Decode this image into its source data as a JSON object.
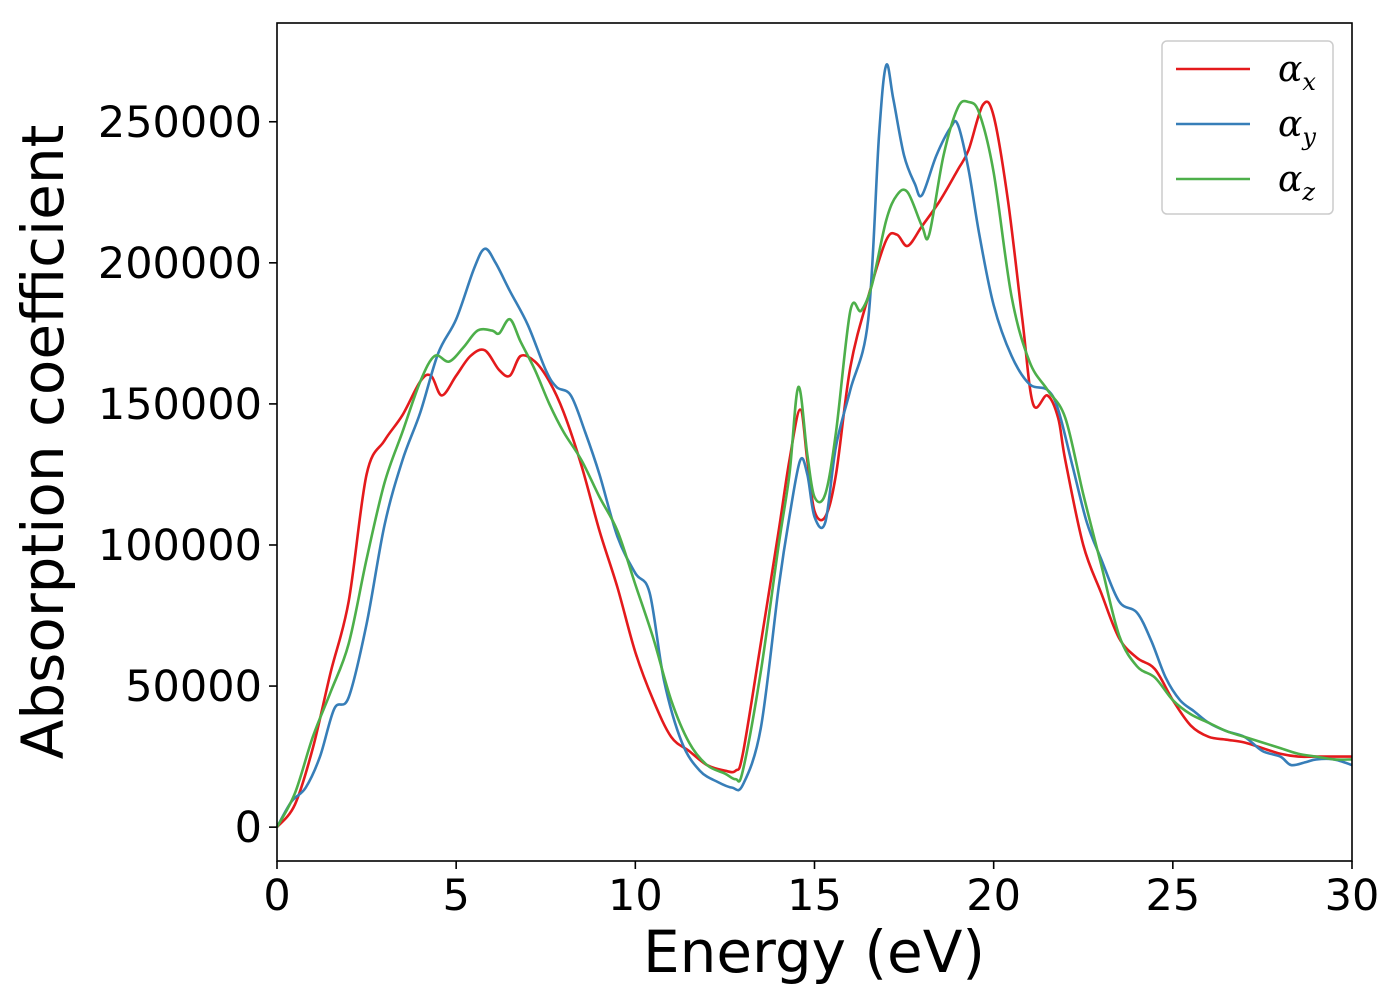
{
  "chart_data": {
    "type": "line",
    "title": "",
    "xlabel": "Energy (eV)",
    "ylabel": "Absorption coefficient",
    "xlim": [
      0,
      30
    ],
    "ylim": [
      -12000,
      285000
    ],
    "xticks": [
      0,
      5,
      10,
      15,
      20,
      25,
      30
    ],
    "yticks": [
      0,
      50000,
      100000,
      150000,
      200000,
      250000
    ],
    "xtick_labels": [
      "0",
      "5",
      "10",
      "15",
      "20",
      "25",
      "30"
    ],
    "ytick_labels": [
      "0",
      "50000",
      "100000",
      "150000",
      "200000",
      "250000"
    ],
    "grid": false,
    "legend_position": "top-right",
    "series": [
      {
        "name": "αx",
        "symbol": "α",
        "subscript": "x",
        "color": "#e41a1c",
        "x": [
          0,
          0.5,
          1,
          1.5,
          2,
          2.5,
          3,
          3.5,
          4,
          4.3,
          4.6,
          5,
          5.4,
          5.8,
          6.2,
          6.5,
          6.8,
          7.2,
          7.6,
          8,
          8.5,
          9,
          9.5,
          10,
          10.5,
          11,
          11.5,
          12,
          12.5,
          12.8,
          13,
          13.5,
          14,
          14.3,
          14.6,
          14.8,
          15,
          15.3,
          15.6,
          16,
          16.5,
          17,
          17.3,
          17.6,
          18,
          18.5,
          19,
          19.3,
          19.7,
          20,
          20.4,
          20.8,
          21.1,
          21.5,
          21.8,
          22,
          22.5,
          23,
          23.5,
          24,
          24.5,
          25,
          25.5,
          26,
          26.5,
          27,
          27.5,
          28,
          28.5,
          29,
          29.5,
          30
        ],
        "y": [
          0,
          8000,
          28000,
          55000,
          80000,
          125000,
          137000,
          146000,
          158000,
          160000,
          153000,
          160000,
          167000,
          169000,
          162000,
          160000,
          167000,
          165000,
          158000,
          147000,
          128000,
          105000,
          85000,
          62000,
          45000,
          32000,
          27000,
          22000,
          20000,
          20000,
          26000,
          65000,
          105000,
          130000,
          148000,
          130000,
          112000,
          110000,
          125000,
          163000,
          188000,
          208000,
          210000,
          206000,
          213000,
          222000,
          233000,
          240000,
          256000,
          252000,
          222000,
          180000,
          150000,
          153000,
          145000,
          130000,
          100000,
          83000,
          67000,
          60000,
          56000,
          45000,
          36000,
          32000,
          31000,
          30000,
          28000,
          26000,
          25000,
          25000,
          25000,
          25000
        ]
      },
      {
        "name": "αy",
        "symbol": "α",
        "subscript": "y",
        "color": "#377eb8",
        "x": [
          0,
          0.4,
          0.8,
          1.2,
          1.6,
          2,
          2.5,
          3,
          3.5,
          4,
          4.5,
          5,
          5.5,
          5.8,
          6.1,
          6.5,
          7,
          7.5,
          7.8,
          8.2,
          8.6,
          9,
          9.5,
          10,
          10.4,
          10.8,
          11.3,
          11.8,
          12.3,
          12.7,
          13,
          13.5,
          14,
          14.3,
          14.6,
          14.8,
          15,
          15.3,
          15.6,
          16,
          16.5,
          16.8,
          17,
          17.2,
          17.5,
          17.8,
          18,
          18.4,
          18.8,
          19,
          19.3,
          19.6,
          20,
          20.5,
          21,
          21.5,
          21.8,
          22.2,
          22.6,
          23,
          23.5,
          24,
          24.4,
          24.8,
          25.2,
          25.6,
          26,
          26.5,
          27,
          27.5,
          28,
          28.3,
          28.7,
          29,
          29.5,
          30
        ],
        "y": [
          0,
          9000,
          14000,
          25000,
          42000,
          46000,
          72000,
          107000,
          130000,
          147000,
          168000,
          180000,
          198000,
          205000,
          200000,
          190000,
          178000,
          162000,
          156000,
          153000,
          140000,
          125000,
          103000,
          90000,
          83000,
          52000,
          30000,
          20000,
          16000,
          14000,
          15000,
          35000,
          85000,
          110000,
          130000,
          125000,
          110000,
          108000,
          135000,
          155000,
          180000,
          245000,
          270000,
          258000,
          238000,
          228000,
          224000,
          238000,
          248000,
          249000,
          233000,
          210000,
          185000,
          167000,
          157000,
          155000,
          148000,
          128000,
          108000,
          95000,
          80000,
          76000,
          66000,
          53000,
          45000,
          41000,
          37000,
          34000,
          32000,
          27000,
          25000,
          22000,
          23000,
          24000,
          24000,
          22000
        ]
      },
      {
        "name": "αz",
        "symbol": "α",
        "subscript": "z",
        "color": "#4daf4a",
        "x": [
          0,
          0.5,
          1,
          1.5,
          2,
          2.5,
          3,
          3.5,
          4,
          4.4,
          4.8,
          5.2,
          5.6,
          6,
          6.2,
          6.5,
          6.8,
          7.2,
          7.6,
          8,
          8.5,
          9,
          9.5,
          10,
          10.5,
          11,
          11.5,
          12,
          12.5,
          12.8,
          13,
          13.5,
          14,
          14.3,
          14.55,
          14.8,
          15,
          15.3,
          15.6,
          16,
          16.3,
          16.6,
          17,
          17.3,
          17.6,
          18,
          18.2,
          18.6,
          19,
          19.3,
          19.6,
          20,
          20.5,
          21,
          21.5,
          22,
          22.5,
          23,
          23.5,
          24,
          24.5,
          25,
          25.5,
          26,
          26.5,
          27,
          27.5,
          28,
          28.5,
          29,
          29.5,
          30
        ],
        "y": [
          0,
          12000,
          32000,
          48000,
          65000,
          95000,
          122000,
          140000,
          158000,
          167000,
          165000,
          170000,
          176000,
          176000,
          175000,
          180000,
          172000,
          162000,
          150000,
          140000,
          130000,
          117000,
          105000,
          86000,
          67000,
          45000,
          30000,
          22000,
          19000,
          17000,
          20000,
          55000,
          100000,
          125000,
          156000,
          132000,
          117000,
          118000,
          140000,
          183000,
          183000,
          192000,
          215000,
          224000,
          225000,
          213000,
          210000,
          238000,
          255000,
          257000,
          253000,
          232000,
          188000,
          165000,
          155000,
          145000,
          118000,
          93000,
          68000,
          57000,
          53000,
          45000,
          40000,
          37000,
          34000,
          32000,
          30000,
          28000,
          26000,
          25000,
          24000,
          24000
        ]
      }
    ]
  }
}
